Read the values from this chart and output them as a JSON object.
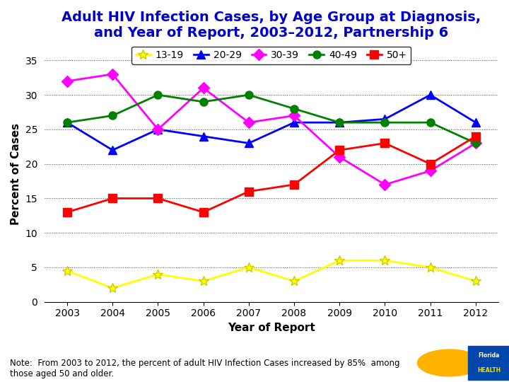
{
  "title": "Adult HIV Infection Cases, by Age Group at Diagnosis,\nand Year of Report, 2003–2012, Partnership 6",
  "xlabel": "Year of Report",
  "ylabel": "Percent of Cases",
  "years": [
    2003,
    2004,
    2005,
    2006,
    2007,
    2008,
    2009,
    2010,
    2011,
    2012
  ],
  "series": {
    "13-19": {
      "values": [
        4.5,
        2.0,
        4.0,
        3.0,
        5.0,
        3.0,
        6.0,
        6.0,
        5.0,
        3.0
      ],
      "color": "#FFFF00",
      "marker": "*",
      "markersize": 10,
      "label": "13-19"
    },
    "20-29": {
      "values": [
        26.0,
        22.0,
        25.0,
        24.0,
        23.0,
        26.0,
        26.0,
        26.5,
        30.0,
        26.0
      ],
      "color": "#0000FF",
      "marker": "^",
      "markersize": 8,
      "label": "20-29"
    },
    "30-39": {
      "values": [
        32.0,
        33.0,
        25.0,
        31.0,
        26.0,
        27.0,
        21.0,
        17.0,
        19.0,
        23.0
      ],
      "color": "#FF00FF",
      "marker": "D",
      "markersize": 8,
      "label": "30-39"
    },
    "40-49": {
      "values": [
        26.0,
        27.0,
        30.0,
        29.0,
        30.0,
        28.0,
        26.0,
        26.0,
        26.0,
        23.0
      ],
      "color": "#008000",
      "marker": "o",
      "markersize": 8,
      "label": "40-49"
    },
    "50+": {
      "values": [
        13.0,
        15.0,
        15.0,
        13.0,
        16.0,
        17.0,
        22.0,
        23.0,
        20.0,
        24.0
      ],
      "color": "#FF0000",
      "marker": "s",
      "markersize": 8,
      "label": "50+"
    }
  },
  "ylim": [
    0,
    37
  ],
  "yticks": [
    0,
    5,
    10,
    15,
    20,
    25,
    30,
    35
  ],
  "grid_color": "#000000",
  "grid_style": "dotted",
  "background_color": "#FFFFFF",
  "title_color": "#0000CC",
  "title_fontsize": 14,
  "axis_label_fontsize": 11,
  "tick_fontsize": 10,
  "legend_fontsize": 10,
  "note_text": "Note:  From 2003 to 2012, the percent of adult HIV Infection Cases increased by 85%  among\nthose aged 50 and older.",
  "note_fontsize": 8.5,
  "linewidth": 2
}
